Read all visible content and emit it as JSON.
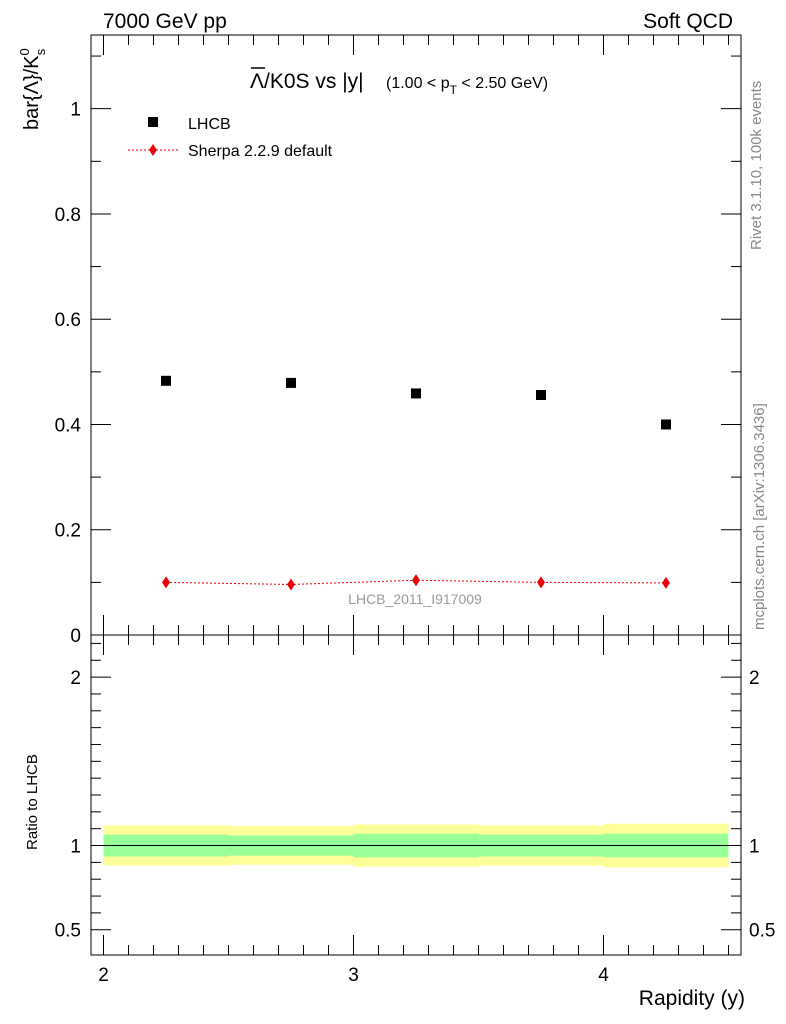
{
  "header": {
    "left": "7000 GeV pp",
    "right": "Soft QCD"
  },
  "side_labels": {
    "rivet": "Rivet 3.1.10,  100k events",
    "source": "mcplots.cern.ch [arXiv:1306.3436]"
  },
  "chart_data": [
    {
      "type": "scatter",
      "title": "Λ/K0S vs |y|",
      "title_parts": {
        "lambda": "Λ",
        "rest": "/K0S vs |y|",
        "cut_prefix": "(1.00 < p",
        "cut_sub": "T",
        "cut_suffix": " < 2.50 GeV)"
      },
      "ylabel": "bar{Λ}/K",
      "ylabel_parts": {
        "main": "bar{Λ}/K",
        "sup": "0",
        "sub": "s"
      },
      "watermark": "LHCB_2011_I917009",
      "xlim": [
        1.95,
        4.55
      ],
      "ylim": [
        0,
        1.14
      ],
      "xticks": [
        2,
        3,
        4
      ],
      "yticks": [
        0,
        0.2,
        0.4,
        0.6,
        0.8,
        1
      ],
      "ytick_labels": [
        "0",
        "0.2",
        "0.4",
        "0.6",
        "0.8",
        "1"
      ],
      "legend": "top-left",
      "series": [
        {
          "name": "LHCB",
          "marker": "square",
          "color": "#000000",
          "x": [
            2.25,
            2.75,
            3.25,
            3.75,
            4.25
          ],
          "y": [
            0.483,
            0.479,
            0.459,
            0.456,
            0.4
          ]
        },
        {
          "name": "Sherpa 2.2.9 default",
          "marker": "diamond",
          "color": "#e8000b",
          "line": "dotted",
          "x": [
            2.25,
            2.75,
            3.25,
            3.75,
            4.25
          ],
          "y": [
            0.1,
            0.096,
            0.104,
            0.1,
            0.099
          ]
        }
      ]
    },
    {
      "type": "line",
      "ylabel": "Ratio to LHCB",
      "xlabel": "Rapidity (y)",
      "xlim": [
        1.95,
        4.55
      ],
      "ylim": [
        0.35,
        2.25
      ],
      "xticks": [
        2,
        3,
        4
      ],
      "xtick_labels": [
        "2",
        "3",
        "4"
      ],
      "yticks": [
        0.5,
        1,
        2
      ],
      "ytick_labels": [
        "0.5",
        "1",
        "2"
      ],
      "bins": [
        {
          "lo": 2.0,
          "hi": 2.5,
          "inner": [
            0.935,
            1.065
          ],
          "outer": [
            0.88,
            1.12
          ]
        },
        {
          "lo": 2.5,
          "hi": 3.0,
          "inner": [
            0.94,
            1.06
          ],
          "outer": [
            0.885,
            1.115
          ]
        },
        {
          "lo": 3.0,
          "hi": 3.5,
          "inner": [
            0.93,
            1.07
          ],
          "outer": [
            0.875,
            1.125
          ]
        },
        {
          "lo": 3.5,
          "hi": 4.0,
          "inner": [
            0.935,
            1.065
          ],
          "outer": [
            0.88,
            1.12
          ]
        },
        {
          "lo": 4.0,
          "hi": 4.5,
          "inner": [
            0.93,
            1.07
          ],
          "outer": [
            0.87,
            1.13
          ]
        }
      ],
      "reference": 1,
      "colors": {
        "inner": "#99ff99",
        "outer": "#ffff99"
      }
    }
  ]
}
